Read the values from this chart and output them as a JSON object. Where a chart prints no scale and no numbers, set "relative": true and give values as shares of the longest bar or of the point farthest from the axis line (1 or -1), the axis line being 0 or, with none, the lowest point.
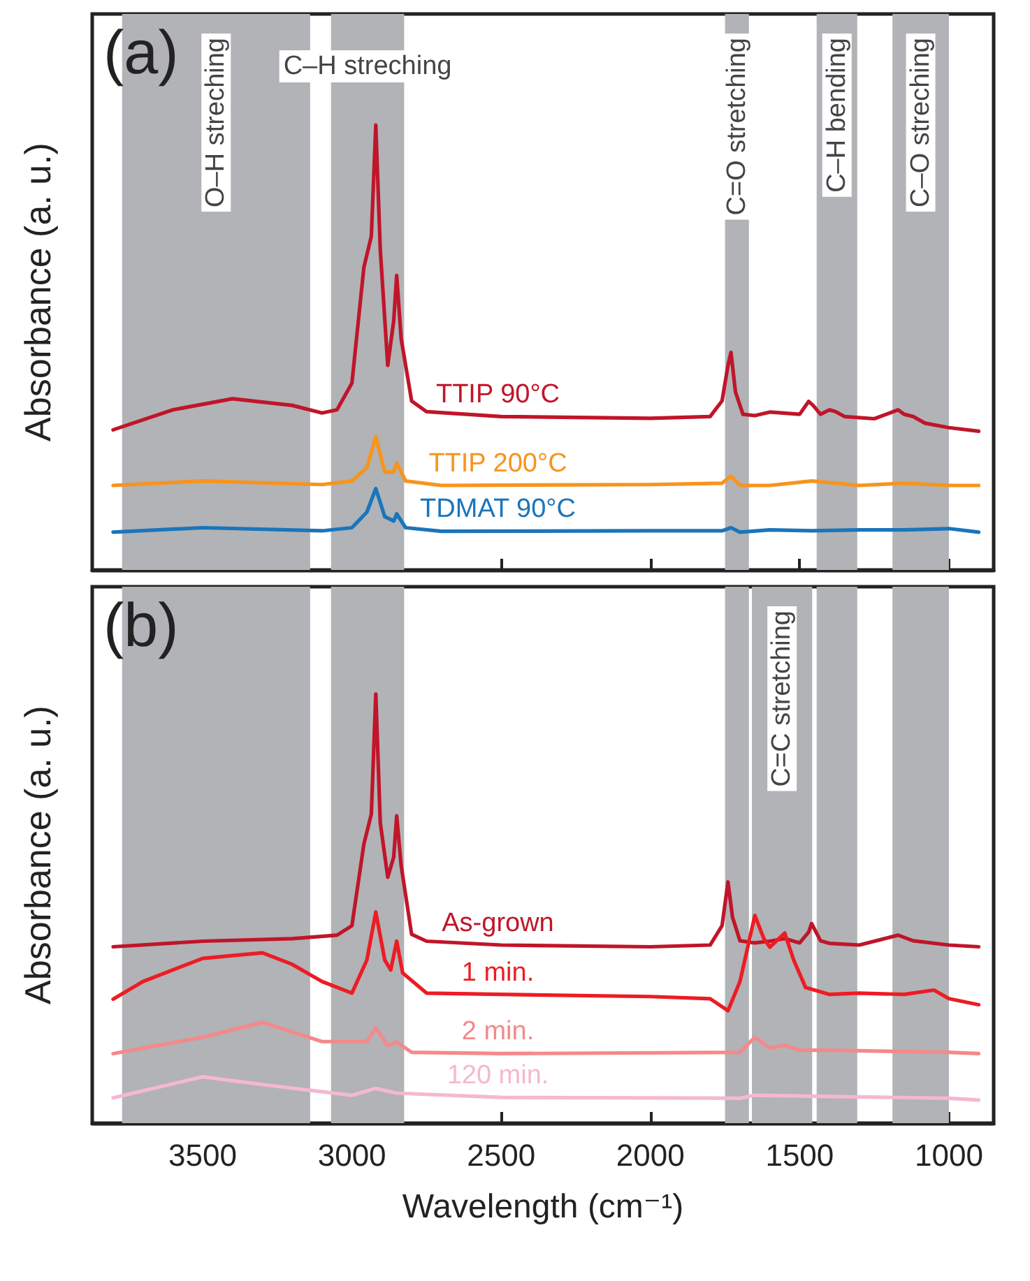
{
  "chart_data": [
    {
      "type": "line",
      "relative": true,
      "ylabel": "Absorbance (a. u.)",
      "annotations": [
        "(a)"
      ],
      "xlim": [
        3870,
        850
      ],
      "xticks": [
        3500,
        3000,
        2500,
        2000,
        1500,
        1000
      ],
      "tick_labels": false,
      "grid": false,
      "legend": false,
      "marker": "none",
      "line_style": "solid",
      "bands": [
        {
          "axis": "x",
          "from": 3770,
          "to": 3140,
          "label": "O–H streching",
          "color": "#b1b3b6"
        },
        {
          "axis": "x",
          "from": 3070,
          "to": 2825,
          "label": "C–H streching",
          "color": "#b1b3b6"
        },
        {
          "axis": "x",
          "from": 1750,
          "to": 1670,
          "label": "C=O stretching",
          "color": "#b1b3b6"
        },
        {
          "axis": "x",
          "from": 1443,
          "to": 1307,
          "label": "C–H bending",
          "color": "#b1b3b6"
        },
        {
          "axis": "x",
          "from": 1189,
          "to": 1000,
          "label": "C–O streching",
          "color": "#b1b3b6"
        }
      ],
      "series": [
        {
          "name": "TTIP 90°C",
          "color": "#c0152a",
          "x": [
            3800,
            3600,
            3400,
            3200,
            3100,
            3050,
            3000,
            2960,
            2935,
            2920,
            2905,
            2880,
            2860,
            2850,
            2835,
            2800,
            2750,
            2500,
            2000,
            1800,
            1760,
            1740,
            1730,
            1715,
            1690,
            1650,
            1600,
            1500,
            1470,
            1455,
            1430,
            1400,
            1380,
            1350,
            1250,
            1170,
            1150,
            1120,
            1080,
            1000,
            900
          ],
          "values": [
            0.315,
            0.36,
            0.385,
            0.37,
            0.353,
            0.36,
            0.42,
            0.68,
            0.75,
            1.0,
            0.72,
            0.46,
            0.56,
            0.662,
            0.52,
            0.38,
            0.356,
            0.345,
            0.341,
            0.345,
            0.38,
            0.46,
            0.489,
            0.4,
            0.35,
            0.347,
            0.355,
            0.35,
            0.379,
            0.37,
            0.35,
            0.36,
            0.356,
            0.345,
            0.34,
            0.36,
            0.35,
            0.345,
            0.33,
            0.32,
            0.312
          ]
        },
        {
          "name": "TTIP 200°C",
          "color": "#f7941d",
          "x": [
            3800,
            3500,
            3100,
            3000,
            2950,
            2920,
            2890,
            2860,
            2850,
            2820,
            2700,
            2000,
            1760,
            1730,
            1700,
            1600,
            1460,
            1300,
            1150,
            1000,
            900
          ],
          "values": [
            0.19,
            0.2,
            0.192,
            0.2,
            0.23,
            0.3,
            0.22,
            0.22,
            0.24,
            0.2,
            0.19,
            0.192,
            0.195,
            0.211,
            0.19,
            0.19,
            0.2,
            0.19,
            0.195,
            0.19,
            0.19
          ]
        },
        {
          "name": "TDMAT 90°C",
          "color": "#1a75bb",
          "x": [
            3800,
            3500,
            3100,
            3000,
            2950,
            2920,
            2890,
            2860,
            2850,
            2820,
            2700,
            2000,
            1760,
            1730,
            1700,
            1600,
            1460,
            1300,
            1150,
            1000,
            900
          ],
          "values": [
            0.085,
            0.095,
            0.088,
            0.095,
            0.13,
            0.183,
            0.12,
            0.11,
            0.126,
            0.095,
            0.087,
            0.088,
            0.088,
            0.095,
            0.085,
            0.09,
            0.088,
            0.09,
            0.09,
            0.093,
            0.085
          ]
        }
      ]
    },
    {
      "type": "line",
      "relative": true,
      "ylabel": "Absorbance (a. u.)",
      "xlabel": "Wavelength (cm⁻¹)",
      "annotations": [
        "(b)"
      ],
      "xlim": [
        3870,
        850
      ],
      "xticks": [
        3500,
        3000,
        2500,
        2000,
        1500,
        1000
      ],
      "tick_labels": "x",
      "grid": false,
      "legend": false,
      "marker": "none",
      "line_style": "solid",
      "bands": [
        {
          "axis": "x",
          "from": 3770,
          "to": 3140,
          "color": "#b1b3b6"
        },
        {
          "axis": "x",
          "from": 3070,
          "to": 2825,
          "color": "#b1b3b6"
        },
        {
          "axis": "x",
          "from": 1750,
          "to": 1670,
          "color": "#b1b3b6"
        },
        {
          "axis": "x",
          "from": 1660,
          "to": 1458,
          "label": "C=C stretching",
          "color": "#b1b3b6"
        },
        {
          "axis": "x",
          "from": 1443,
          "to": 1307,
          "color": "#b1b3b6"
        },
        {
          "axis": "x",
          "from": 1189,
          "to": 1000,
          "color": "#b1b3b6"
        }
      ],
      "series": [
        {
          "name": "As-grown",
          "color": "#c0152a",
          "x": [
            3800,
            3500,
            3200,
            3050,
            3000,
            2960,
            2935,
            2920,
            2905,
            2880,
            2860,
            2850,
            2835,
            2800,
            2750,
            2500,
            2000,
            1800,
            1760,
            1740,
            1725,
            1700,
            1650,
            1600,
            1550,
            1500,
            1470,
            1460,
            1430,
            1400,
            1300,
            1170,
            1120,
            1000,
            900
          ],
          "values": [
            0.411,
            0.424,
            0.43,
            0.438,
            0.46,
            0.65,
            0.72,
            1.0,
            0.7,
            0.573,
            0.62,
            0.716,
            0.6,
            0.44,
            0.424,
            0.415,
            0.411,
            0.415,
            0.46,
            0.562,
            0.48,
            0.425,
            0.42,
            0.424,
            0.43,
            0.42,
            0.445,
            0.465,
            0.425,
            0.419,
            0.415,
            0.438,
            0.425,
            0.415,
            0.411
          ]
        },
        {
          "name": "1 min.",
          "color": "#ed1c24",
          "x": [
            3800,
            3700,
            3500,
            3300,
            3200,
            3100,
            3000,
            2950,
            2920,
            2890,
            2870,
            2850,
            2830,
            2750,
            2500,
            2000,
            1800,
            1740,
            1700,
            1650,
            1620,
            1600,
            1550,
            1520,
            1480,
            1400,
            1300,
            1150,
            1050,
            1000,
            900
          ],
          "values": [
            0.289,
            0.33,
            0.384,
            0.397,
            0.37,
            0.33,
            0.303,
            0.38,
            0.492,
            0.38,
            0.357,
            0.424,
            0.35,
            0.303,
            0.3,
            0.295,
            0.29,
            0.262,
            0.33,
            0.484,
            0.43,
            0.41,
            0.443,
            0.38,
            0.316,
            0.3,
            0.303,
            0.3,
            0.31,
            0.29,
            0.276
          ]
        },
        {
          "name": "2 min.",
          "color": "#f4898b",
          "x": [
            3800,
            3500,
            3300,
            3100,
            2950,
            2920,
            2880,
            2850,
            2800,
            2500,
            1700,
            1650,
            1600,
            1550,
            1500,
            1400,
            1000,
            900
          ],
          "values": [
            0.162,
            0.2,
            0.235,
            0.19,
            0.19,
            0.222,
            0.18,
            0.189,
            0.165,
            0.162,
            0.165,
            0.2,
            0.175,
            0.181,
            0.17,
            0.17,
            0.165,
            0.162
          ]
        },
        {
          "name": "120 min.",
          "color": "#f5b8cf",
          "x": [
            3800,
            3500,
            3300,
            3000,
            2920,
            2850,
            2500,
            1700,
            1650,
            1000,
            900
          ],
          "values": [
            0.059,
            0.108,
            0.09,
            0.065,
            0.081,
            0.07,
            0.06,
            0.058,
            0.065,
            0.058,
            0.054
          ]
        }
      ]
    }
  ]
}
